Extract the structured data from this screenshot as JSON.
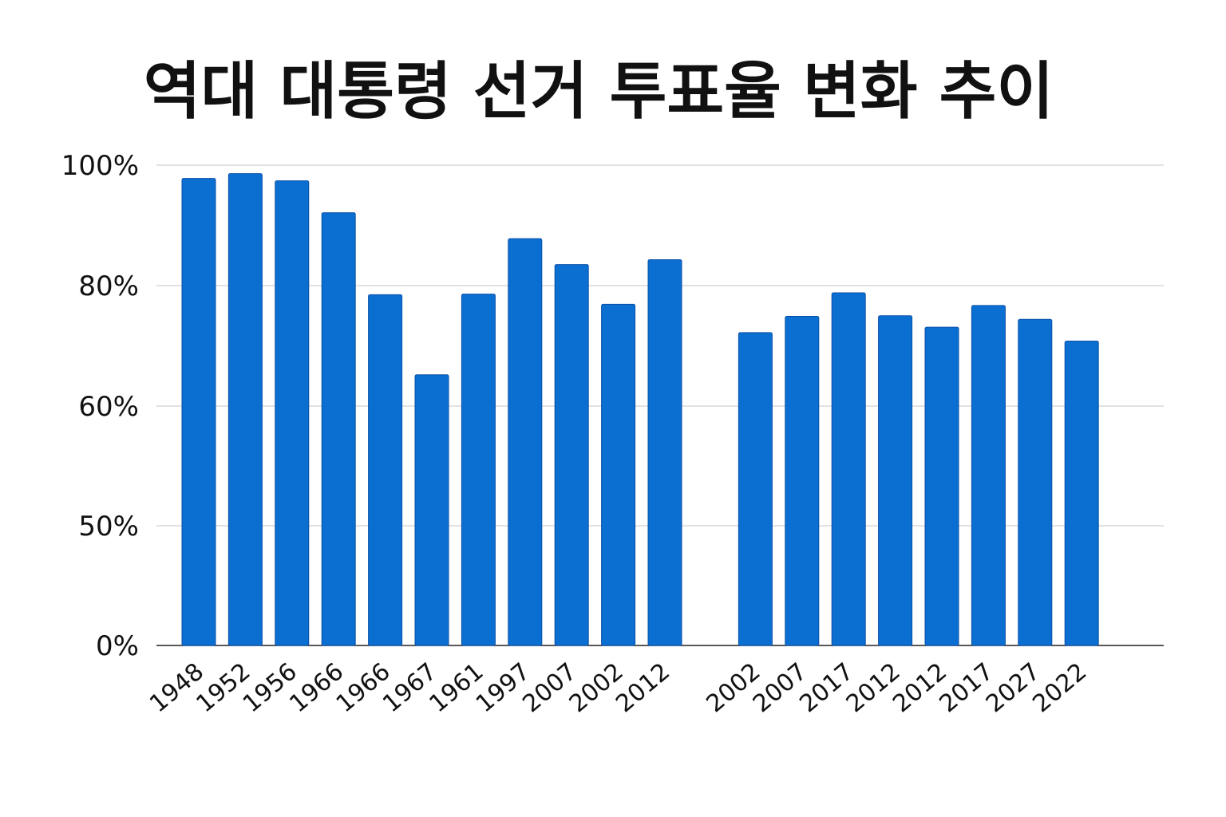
{
  "chart_data": {
    "type": "bar",
    "title": "역대 대통령 선거 투표율 변화 추이",
    "xlabel": "",
    "ylabel": "",
    "categories": [
      "1948",
      "1952",
      "1956",
      "1966",
      "1966",
      "1967",
      "1961",
      "1997",
      "2007",
      "2002",
      "2012",
      "2002",
      "2007",
      "2017",
      "2012",
      "2012",
      "2017",
      "2027",
      "2022"
    ],
    "gap_after_index": 10,
    "y_ticks": [
      {
        "label": "100%",
        "value": 100
      },
      {
        "label": "80%",
        "value": 80
      },
      {
        "label": "60%",
        "value": 60
      },
      {
        "label": "50%",
        "value": 50
      },
      {
        "label": "0%",
        "value": 0
      }
    ],
    "values": [
      97.8,
      98.6,
      97.4,
      92.1,
      78.5,
      65.2,
      78.6,
      87.8,
      83.5,
      76.9,
      84.3,
      72.2,
      74.9,
      78.8,
      75.0,
      73.1,
      76.7,
      74.4,
      70.8
    ],
    "grid": true,
    "legend": "none",
    "colors": {
      "bar": "#0b6fd1",
      "grid": "#d9d9d9",
      "axis": "#222222",
      "text": "#111111"
    }
  }
}
